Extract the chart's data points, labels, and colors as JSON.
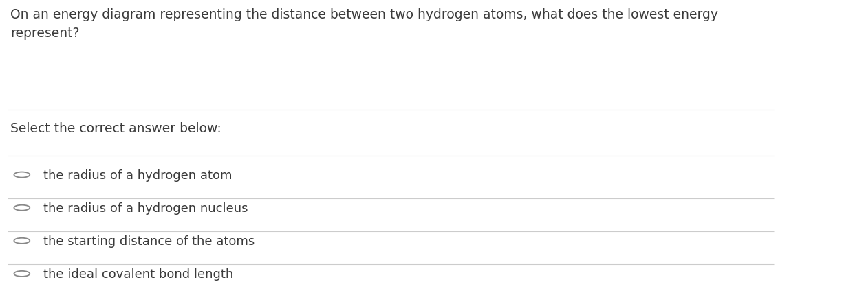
{
  "question": "On an energy diagram representing the distance between two hydrogen atoms, what does the lowest energy\nrepresent?",
  "prompt": "Select the correct answer below:",
  "options": [
    "the radius of a hydrogen atom",
    "the radius of a hydrogen nucleus",
    "the starting distance of the atoms",
    "the ideal covalent bond length"
  ],
  "bg_color": "#ffffff",
  "text_color": "#3a3a3a",
  "line_color": "#cccccc",
  "font_size_question": 13.5,
  "font_size_prompt": 13.5,
  "font_size_options": 13.0,
  "circle_color": "#888888",
  "fig_width": 12.27,
  "fig_height": 4.11
}
